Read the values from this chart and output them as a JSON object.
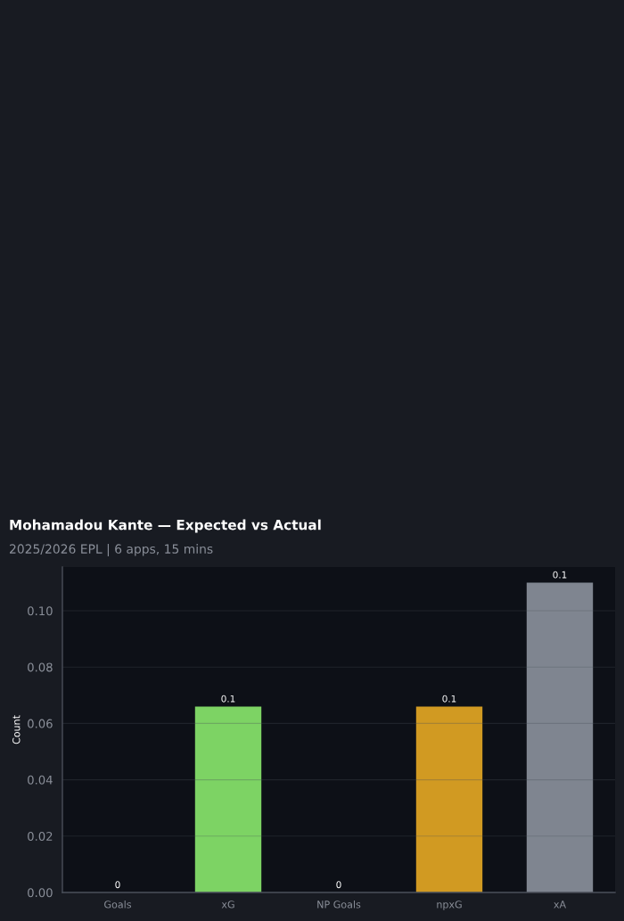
{
  "chart_data": {
    "type": "bar",
    "title": "Mohamadou Kante — Expected vs Actual",
    "subtitle": "2025/2026 EPL | 6 apps, 15 mins",
    "ylabel": "Count",
    "categories": [
      "Goals",
      "xG",
      "NP Goals",
      "npxG",
      "xA"
    ],
    "values": [
      0,
      0.066,
      0,
      0.066,
      0.11
    ],
    "colors": [
      "#7dd364",
      "#7dd364",
      "#d19a22",
      "#d19a22",
      "#7f8590"
    ],
    "value_labels": [
      "0",
      "0.1",
      "0",
      "0.1",
      "0.1"
    ],
    "ylim": [
      0,
      0.1155
    ],
    "yticks": [
      {
        "value": 0,
        "label": "0.00"
      },
      {
        "value": 0.02,
        "label": "0.02"
      },
      {
        "value": 0.04,
        "label": "0.04"
      },
      {
        "value": 0.06,
        "label": "0.06"
      },
      {
        "value": 0.08,
        "label": "0.08"
      },
      {
        "value": 0.1,
        "label": "0.10"
      }
    ],
    "grid": "y"
  }
}
